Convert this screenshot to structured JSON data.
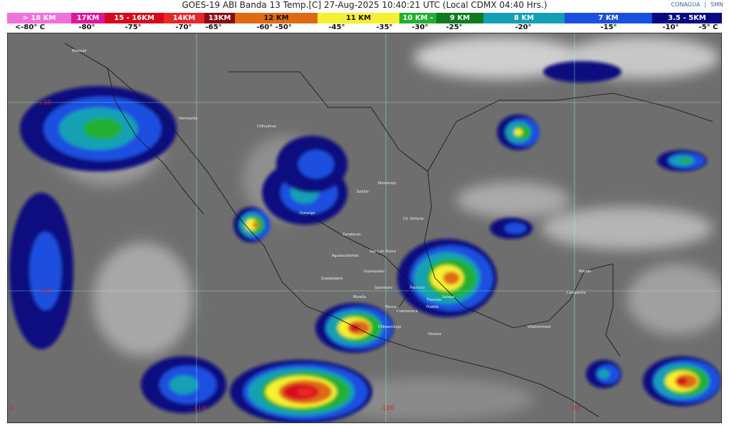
{
  "header": {
    "title": "GOES-19 ABI Banda 13 Temp.[C] 27-Aug-2025 10:40:21 UTC (Local CDMX  04:40 Hrs.)",
    "logos": [
      "CONAGUA",
      "SMN"
    ]
  },
  "legend": {
    "segments": [
      {
        "label": "> 18 KM",
        "color": "#f06ed8"
      },
      {
        "label": "17KM",
        "color": "#e0169a"
      },
      {
        "label": "15 - 16KM",
        "color": "#d40a1c"
      },
      {
        "label": "14KM",
        "color": "#e82828"
      },
      {
        "label": "13KM",
        "color": "#8c0a14"
      },
      {
        "label": "12 KM",
        "color": "#e06a14"
      },
      {
        "label": "11 KM",
        "color": "#f5f032"
      },
      {
        "label": "10 KM -",
        "color": "#22b030"
      },
      {
        "label": "9 KM",
        "color": "#107a20"
      },
      {
        "label": "8 KM",
        "color": "#14a0b4"
      },
      {
        "label": "7 KM",
        "color": "#1a50e0"
      },
      {
        "label": "3.5 - 5KM",
        "color": "#0a0a80"
      }
    ],
    "temps": [
      "<-80° C",
      "-80°",
      "-75°",
      "-70°",
      "-65°",
      "-60° -50°",
      "-45°",
      "-35°",
      "-30°",
      "-25°",
      "-20°",
      "-15°",
      "-10°",
      "-5° C"
    ]
  },
  "map": {
    "grid_labels": [
      "+30",
      "+20",
      "-1",
      "-110",
      "-100",
      "-90"
    ],
    "cities": [
      "Mexicali",
      "Hermosillo",
      "Chihuahua",
      "Monterrey",
      "Saltillo",
      "Durango",
      "Cd. Victoria",
      "Zacatecas",
      "San Luis Potosí",
      "Aguascalientes",
      "Guadalajara",
      "Guanajuato",
      "Querétaro",
      "Pachuca",
      "Morelia",
      "Toluca",
      "Tlaxcala",
      "Puebla",
      "Cuernavaca",
      "Xalapa",
      "Chilpancingo",
      "Oaxaca",
      "Villahermosa",
      "Campeche",
      "Mérida"
    ]
  }
}
